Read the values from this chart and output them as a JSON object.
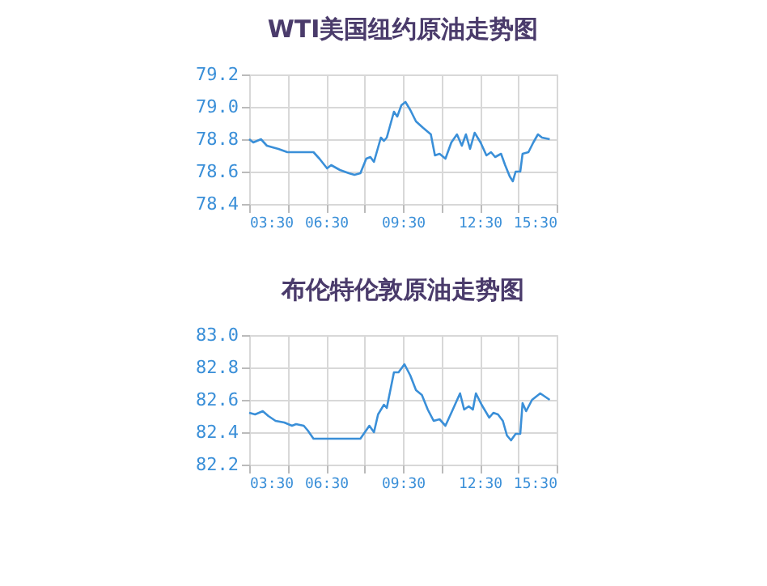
{
  "chart_data": [
    {
      "type": "line",
      "title": "WTI美国纽约原油走势图",
      "xlim": [
        3.5,
        15.5
      ],
      "ylim": [
        78.4,
        79.2
      ],
      "yticks": [
        78.4,
        78.6,
        78.8,
        {
          "value": 79,
          "label": "79.0"
        },
        79.2
      ],
      "xticks": [
        {
          "value": 3.5,
          "label": "03:30"
        },
        {
          "value": 5,
          "label": null
        },
        {
          "value": 6.5,
          "label": "06:30"
        },
        {
          "value": 8,
          "label": null
        },
        {
          "value": 9.5,
          "label": "09:30"
        },
        {
          "value": 11,
          "label": null
        },
        {
          "value": 12.5,
          "label": "12:30"
        },
        {
          "value": 14,
          "label": null
        },
        {
          "value": 15.5,
          "label": "15:30"
        }
      ],
      "grid": true,
      "legend": false,
      "marker": "none",
      "line_style": "solid",
      "series": [
        {
          "color": "#3a8fd8",
          "x": [
            3.5,
            3.66,
            3.96,
            4.19,
            4.41,
            4.64,
            4.99,
            6.01,
            6.24,
            6.54,
            6.7,
            7.04,
            7.39,
            7.61,
            7.84,
            8.07,
            8.23,
            8.37,
            8.64,
            8.76,
            8.87,
            9.15,
            9.28,
            9.44,
            9.6,
            9.79,
            10.01,
            10.29,
            10.59,
            10.75,
            10.93,
            11.16,
            11.39,
            11.61,
            11.8,
            11.96,
            12.12,
            12.3,
            12.53,
            12.76,
            12.94,
            13.1,
            13.33,
            13.49,
            13.67,
            13.79,
            13.9,
            14.08,
            14.17,
            14.4,
            14.59,
            14.77,
            14.93,
            15.23
          ],
          "values": [
            78.8,
            78.78,
            78.8,
            78.76,
            78.75,
            78.74,
            78.72,
            78.72,
            78.68,
            78.62,
            78.64,
            78.61,
            78.59,
            78.58,
            78.59,
            78.68,
            78.69,
            78.66,
            78.81,
            78.79,
            78.81,
            78.97,
            78.94,
            79.01,
            79.03,
            78.98,
            78.91,
            78.87,
            78.83,
            78.7,
            78.71,
            78.68,
            78.78,
            78.83,
            78.76,
            78.83,
            78.74,
            78.84,
            78.78,
            78.7,
            78.72,
            78.69,
            78.71,
            78.64,
            78.57,
            78.54,
            78.6,
            78.6,
            78.71,
            78.72,
            78.78,
            78.83,
            78.81,
            78.8
          ]
        }
      ]
    },
    {
      "type": "line",
      "title": "布伦特伦敦原油走势图",
      "xlim": [
        3.5,
        15.5
      ],
      "ylim": [
        82.2,
        83.0
      ],
      "yticks": [
        82.2,
        82.4,
        82.6,
        82.8,
        {
          "value": 83,
          "label": "83.0"
        }
      ],
      "xticks": [
        {
          "value": 3.5,
          "label": "03:30"
        },
        {
          "value": 5,
          "label": null
        },
        {
          "value": 6.5,
          "label": "06:30"
        },
        {
          "value": 8,
          "label": null
        },
        {
          "value": 9.5,
          "label": "09:30"
        },
        {
          "value": 11,
          "label": null
        },
        {
          "value": 12.5,
          "label": "12:30"
        },
        {
          "value": 14,
          "label": null
        },
        {
          "value": 15.5,
          "label": "15:30"
        }
      ],
      "grid": true,
      "legend": false,
      "marker": "none",
      "line_style": "solid",
      "series": [
        {
          "color": "#3a8fd8",
          "x": [
            3.5,
            3.73,
            4.03,
            4.25,
            4.53,
            4.87,
            5.17,
            5.33,
            5.63,
            5.79,
            6.01,
            7.84,
            8.19,
            8.37,
            8.53,
            8.76,
            8.87,
            9.15,
            9.33,
            9.56,
            9.79,
            10.01,
            10.24,
            10.47,
            10.7,
            10.93,
            11.16,
            11.39,
            11.73,
            11.89,
            12.07,
            12.23,
            12.35,
            12.57,
            12.87,
            13.03,
            13.21,
            13.4,
            13.56,
            13.72,
            13.9,
            14.08,
            14.17,
            14.31,
            14.54,
            14.86,
            15.23
          ],
          "values": [
            82.52,
            82.51,
            82.53,
            82.5,
            82.47,
            82.46,
            82.44,
            82.45,
            82.44,
            82.41,
            82.36,
            82.36,
            82.44,
            82.4,
            82.51,
            82.57,
            82.55,
            82.77,
            82.77,
            82.82,
            82.75,
            82.66,
            82.63,
            82.54,
            82.47,
            82.48,
            82.44,
            82.52,
            82.64,
            82.54,
            82.56,
            82.54,
            82.64,
            82.57,
            82.49,
            82.52,
            82.51,
            82.47,
            82.38,
            82.35,
            82.39,
            82.39,
            82.58,
            82.53,
            82.6,
            82.64,
            82.6
          ]
        }
      ]
    }
  ]
}
